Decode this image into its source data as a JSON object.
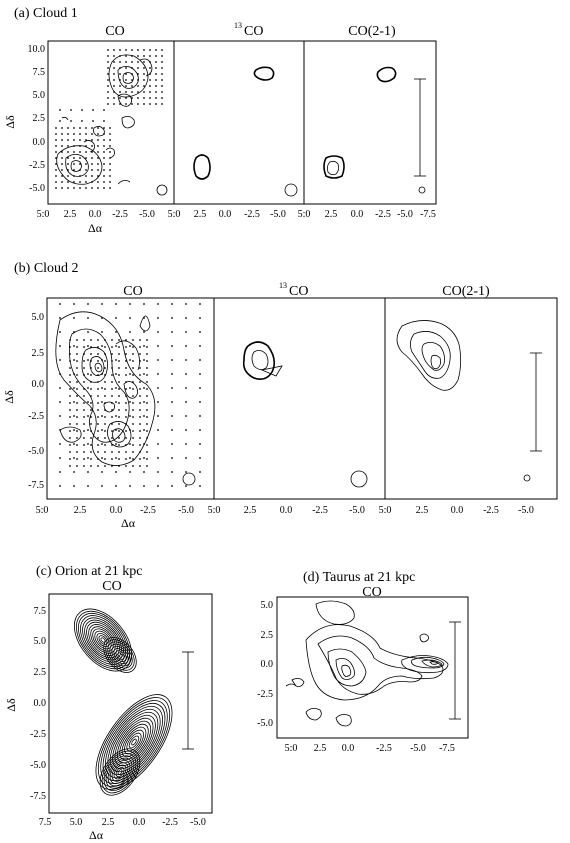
{
  "panels": [
    {
      "id": "a",
      "title": "(a) Cloud 1",
      "sub": [
        {
          "label": "CO",
          "sup": ""
        },
        {
          "label": "CO",
          "sup": "13"
        },
        {
          "label": "CO(2-1)",
          "sup": ""
        }
      ],
      "ylabel": "Δδ",
      "xlabel": "Δα",
      "yticks": [
        "10.0",
        "7.5",
        "5.0",
        "2.5",
        "0.0",
        "-2.5",
        "-5.0"
      ],
      "xticks": [
        "5.0",
        "2.5",
        "0.0",
        "-2.5",
        "-5.0",
        "2.5",
        "0.0",
        "-2.5",
        "-5.0",
        "2.5",
        "0.0",
        "-2.5",
        "-5.0",
        "-7.5"
      ],
      "x_first": "5:0",
      "x_mid1": "5:0",
      "x_mid2": "5:0"
    },
    {
      "id": "b",
      "title": "(b) Cloud 2",
      "sub": [
        {
          "label": "CO",
          "sup": ""
        },
        {
          "label": "CO",
          "sup": "13"
        },
        {
          "label": "CO(2-1)",
          "sup": ""
        }
      ],
      "ylabel": "Δδ",
      "xlabel": "Δα",
      "yticks": [
        "5.0",
        "2.5",
        "0.0",
        "-2.5",
        "-5.0",
        "-7.5"
      ],
      "xticks": [
        "2.5",
        "0.0",
        "-2.5",
        "-5.0",
        "2.5",
        "0.0",
        "-2.5",
        "-5.0",
        "2.5",
        "0.0",
        "-2.5",
        "-5.0"
      ],
      "x_first": "5:0",
      "x_mid1": "5:0",
      "x_mid2": "5:0"
    },
    {
      "id": "c",
      "title": "(c) Orion at 21 kpc",
      "sub": [
        {
          "label": "CO",
          "sup": ""
        }
      ],
      "ylabel": "Δδ",
      "xlabel": "Δα",
      "yticks": [
        "7.5",
        "5.0",
        "2.5",
        "0.0",
        "-2.5",
        "-5.0",
        "-7.5"
      ],
      "xticks": [
        "7.5",
        "5.0",
        "2.5",
        "0.0",
        "-2.5",
        "-5.0"
      ]
    },
    {
      "id": "d",
      "title": "(d) Taurus at 21 kpc",
      "sub": [
        {
          "label": "CO",
          "sup": ""
        }
      ],
      "ylabel": "",
      "xlabel": "",
      "yticks": [
        "5.0",
        "2.5",
        "0.0",
        "-2.5",
        "-5.0"
      ],
      "xticks": [
        "2.5",
        "0.0",
        "-2.5",
        "-5.0",
        "-7.5"
      ],
      "x_first": "5:0"
    }
  ]
}
